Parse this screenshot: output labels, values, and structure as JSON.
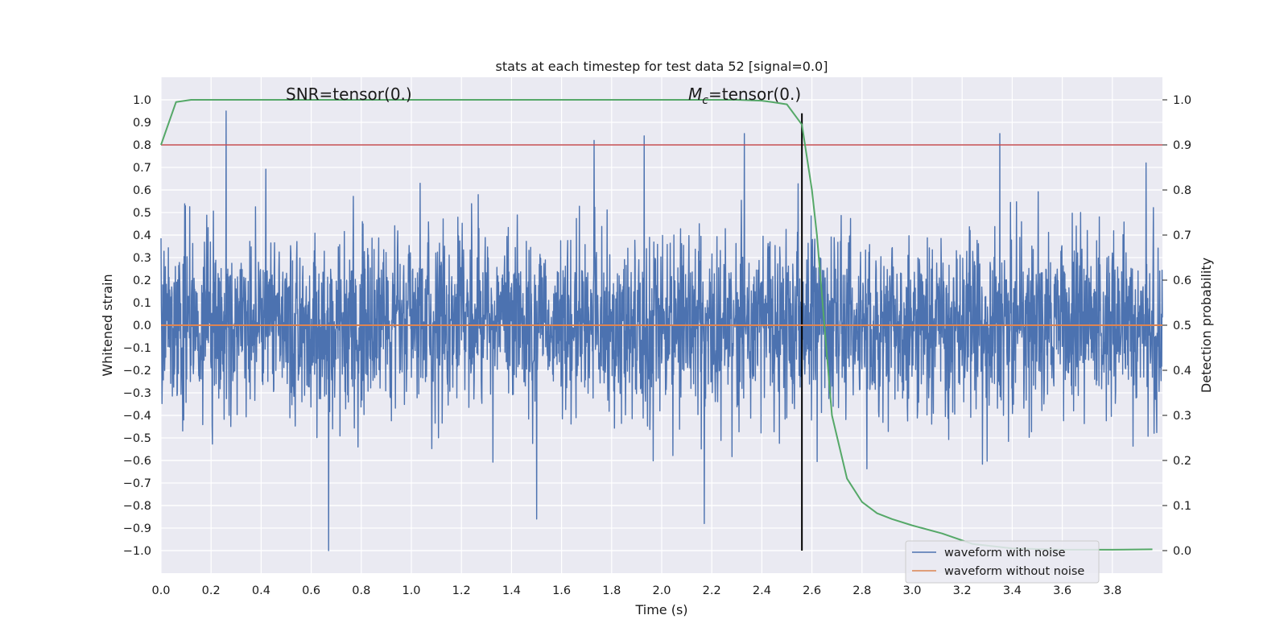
{
  "chart_data": {
    "type": "line",
    "title": "stats at each timestep for test data 52 [signal=0.0]",
    "xlabel": "Time (s)",
    "ylabel": "Whitened strain",
    "y2label": "Detection probability",
    "xlim": [
      0.0,
      4.0
    ],
    "ylim": [
      -1.1,
      1.1
    ],
    "y2lim": [
      -0.05,
      1.05
    ],
    "xticks": [
      "0.0",
      "0.2",
      "0.4",
      "0.6",
      "0.8",
      "1.0",
      "1.2",
      "1.4",
      "1.6",
      "1.8",
      "2.0",
      "2.2",
      "2.4",
      "2.6",
      "2.8",
      "3.0",
      "3.2",
      "3.4",
      "3.6",
      "3.8"
    ],
    "yticks": [
      "1.0",
      "0.9",
      "0.8",
      "0.7",
      "0.6",
      "0.5",
      "0.4",
      "0.3",
      "0.2",
      "0.1",
      "0.0",
      "-0.1",
      "-0.2",
      "-0.3",
      "-0.4",
      "-0.5",
      "-0.6",
      "-0.7",
      "-0.8",
      "-0.9",
      "-1.0"
    ],
    "y2ticks": [
      "1.0",
      "0.9",
      "0.8",
      "0.7",
      "0.6",
      "0.5",
      "0.4",
      "0.3",
      "0.2",
      "0.1",
      "0.0"
    ],
    "grid": true,
    "legend_position": "lower-right",
    "annotations": {
      "snr_text": "SNR=tensor(0.)",
      "mc_symbol": "M",
      "mc_subscript": "c",
      "mc_text": "=tensor(0.)"
    },
    "series": [
      {
        "name": "waveform with noise",
        "color": "#4c72b0",
        "axis": "left",
        "kind": "noise",
        "typical_amplitude": [
          -0.45,
          0.55
        ],
        "notable_spikes": [
          {
            "x": 0.26,
            "y": 0.95
          },
          {
            "x": 0.67,
            "y": -1.0
          },
          {
            "x": 1.73,
            "y": 0.82
          },
          {
            "x": 1.93,
            "y": 0.84
          },
          {
            "x": 2.17,
            "y": -0.88
          },
          {
            "x": 2.33,
            "y": 0.85
          },
          {
            "x": 3.35,
            "y": 0.85
          },
          {
            "x": 1.5,
            "y": -0.86
          }
        ]
      },
      {
        "name": "waveform without noise",
        "color": "#dd8452",
        "axis": "left",
        "x": [
          0.0,
          4.0
        ],
        "values": [
          0.0,
          0.0
        ]
      },
      {
        "name": "detection probability",
        "color": "#55a868",
        "axis": "right",
        "x": [
          0.0,
          0.06,
          0.12,
          0.2,
          0.4,
          0.8,
          1.2,
          1.6,
          2.0,
          2.3,
          2.4,
          2.44,
          2.5,
          2.56,
          2.6,
          2.62,
          2.68,
          2.74,
          2.8,
          2.86,
          2.92,
          3.0,
          3.12,
          3.24,
          3.4,
          3.6,
          3.8,
          3.96
        ],
        "values": [
          0.9,
          0.995,
          1.0,
          1.0,
          1.0,
          1.0,
          1.0,
          1.0,
          1.0,
          1.0,
          0.998,
          0.995,
          0.99,
          0.945,
          0.8,
          0.7,
          0.3,
          0.16,
          0.108,
          0.083,
          0.07,
          0.056,
          0.038,
          0.015,
          0.005,
          0.002,
          0.002,
          0.003
        ]
      }
    ],
    "reference_lines": [
      {
        "axis": "right",
        "orientation": "horizontal",
        "value": 0.9,
        "color": "#c44e52"
      },
      {
        "axis": "x",
        "orientation": "vertical",
        "value": 2.56,
        "color": "#000000",
        "y_from": -1.0,
        "y_to": 0.94
      }
    ]
  }
}
